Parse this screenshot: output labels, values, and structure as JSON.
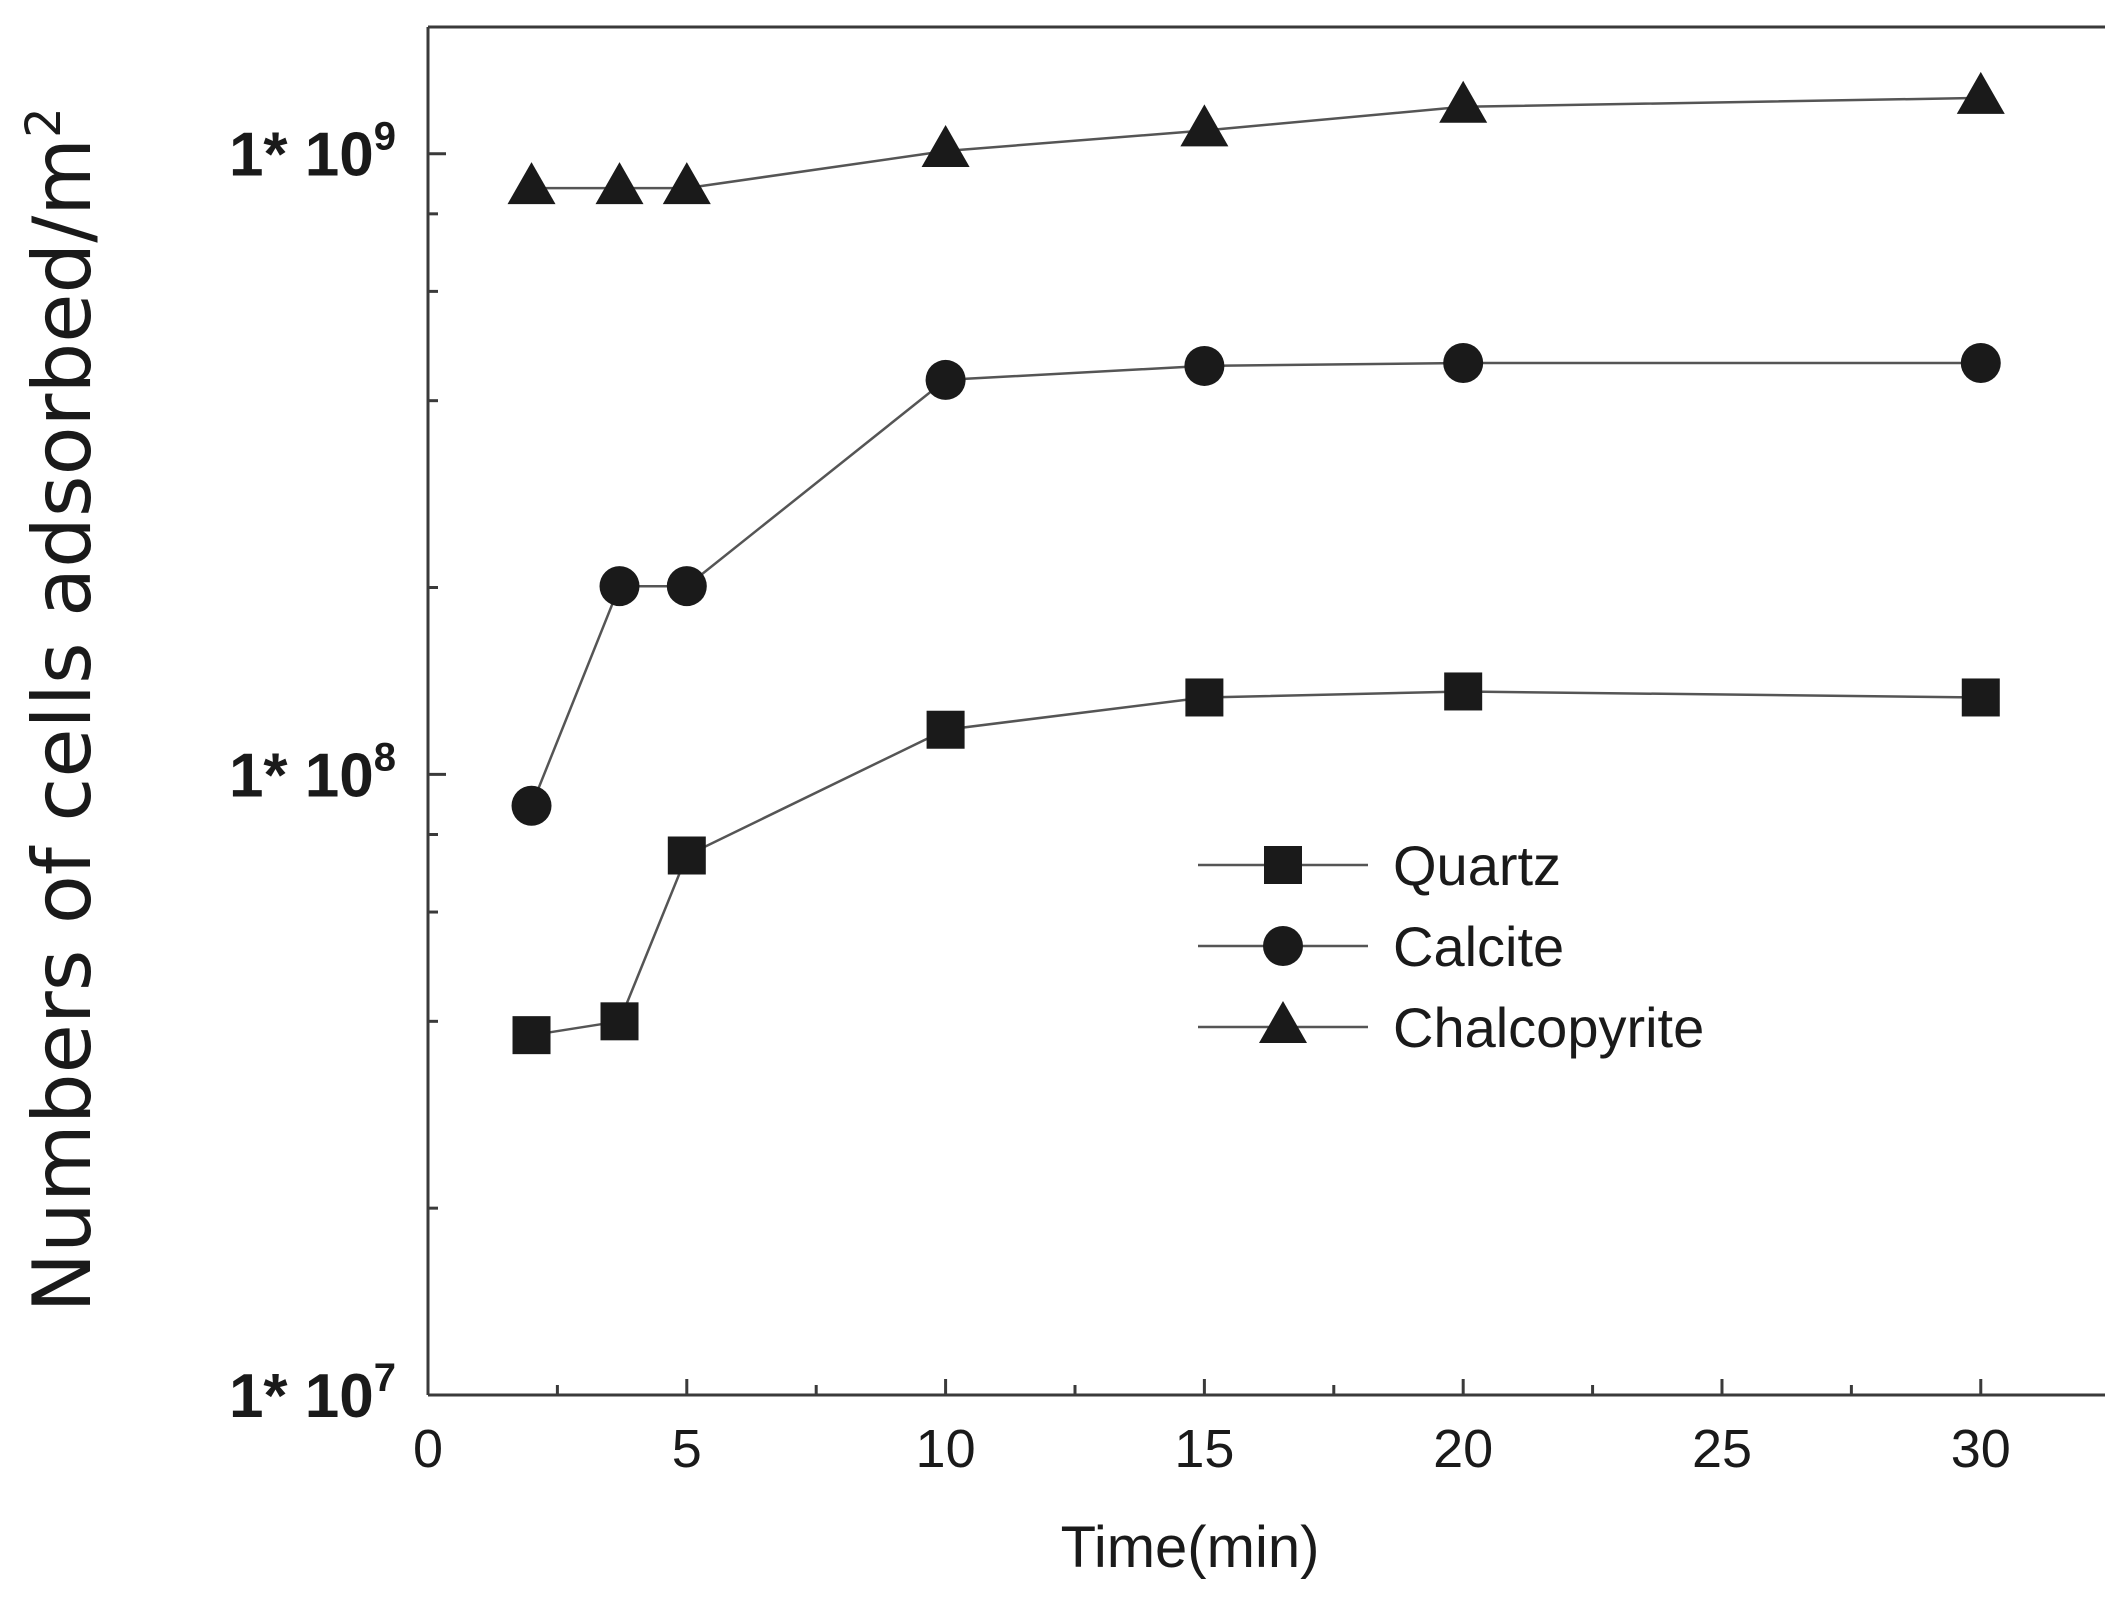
{
  "chart_data": {
    "type": "line",
    "title": "",
    "xlabel": "Time(min)",
    "ylabel": "Numbers of cells adsorbed/m",
    "ylabel_superscript": "2",
    "y_scale": "log",
    "xlim": [
      0,
      32.4
    ],
    "ylim": [
      10000000,
      1600000000
    ],
    "x_ticks": [
      0,
      5,
      10,
      15,
      20,
      25,
      30
    ],
    "x_tick_labels": [
      "0",
      "5",
      "10",
      "15",
      "20",
      "25",
      "30"
    ],
    "y_ticks": [
      {
        "value": 1000000000,
        "base": "1* 10",
        "exp": "9"
      },
      {
        "value": 100000000,
        "base": "1* 10",
        "exp": "8"
      },
      {
        "value": 10000000,
        "base": "1* 10",
        "exp": "7"
      }
    ],
    "legend_position": "center-right",
    "series": [
      {
        "name": "Quartz",
        "marker": "square",
        "points": [
          [
            2,
            38000000
          ],
          [
            3.7,
            40000000
          ],
          [
            5,
            74000000
          ],
          [
            10,
            118000000
          ],
          [
            15,
            133000000
          ],
          [
            20,
            136000000
          ],
          [
            30,
            133000000
          ]
        ]
      },
      {
        "name": "Calcite",
        "marker": "circle",
        "points": [
          [
            2,
            89000000
          ],
          [
            3.7,
            201000000
          ],
          [
            5,
            201000000
          ],
          [
            10,
            432000000
          ],
          [
            15,
            455000000
          ],
          [
            20,
            460000000
          ],
          [
            30,
            460000000
          ]
        ]
      },
      {
        "name": "Chalcopyrite",
        "marker": "triangle",
        "points": [
          [
            2,
            880000000
          ],
          [
            3.7,
            880000000
          ],
          [
            5,
            880000000
          ],
          [
            10,
            1010000000
          ],
          [
            15,
            1090000000
          ],
          [
            20,
            1190000000
          ],
          [
            30,
            1230000000
          ]
        ]
      }
    ]
  }
}
